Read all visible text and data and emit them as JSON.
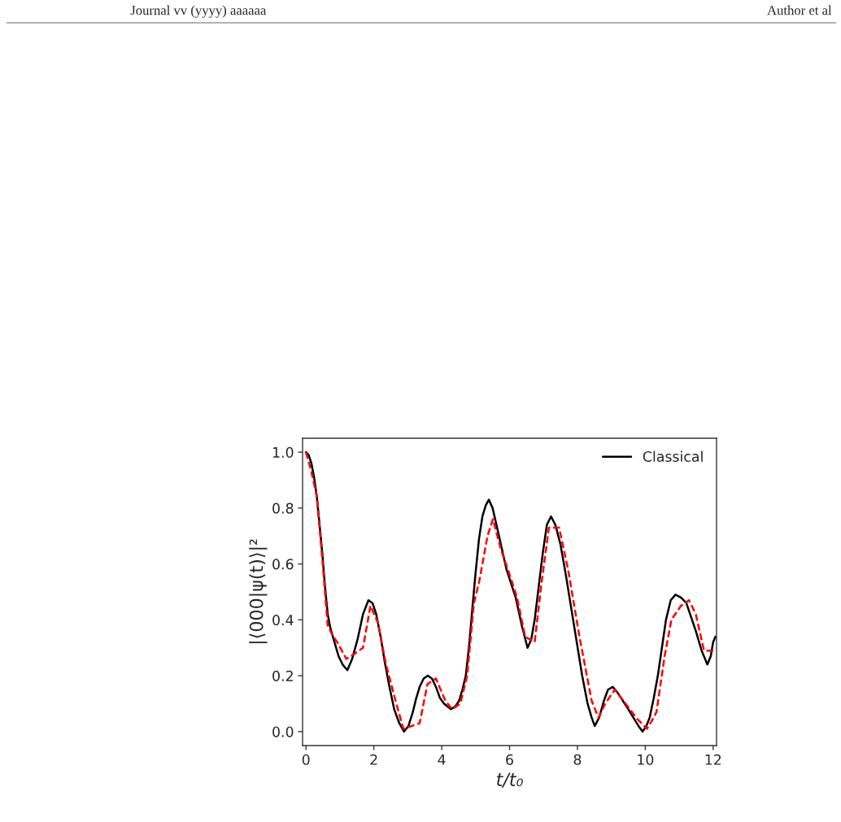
{
  "chart_data": {
    "type": "line",
    "xlabel": "t/t₀",
    "ylabel": "|⟨000|ψ(t)⟩|²",
    "annotations": [
      "Journal vv (yyyy) aaaaaa",
      "Author et al"
    ],
    "xlim": [
      -0.1,
      12.1
    ],
    "ylim": [
      -0.05,
      1.05
    ],
    "xticks": [
      0,
      2,
      4,
      6,
      8,
      10,
      12
    ],
    "yticks": [
      {
        "value": 0,
        "label": "0.0"
      },
      {
        "value": 0.2,
        "label": "0.2"
      },
      {
        "value": 0.4,
        "label": "0.4"
      },
      {
        "value": 0.6,
        "label": "0.6"
      },
      {
        "value": 0.8,
        "label": "0.8"
      },
      {
        "value": 1,
        "label": "1.0"
      }
    ],
    "legend": "top right",
    "series": [
      {
        "name": "Classical",
        "color": "#000000",
        "line_style": "solid",
        "x": [
          0,
          0.08,
          0.16,
          0.24,
          0.32,
          0.4,
          0.48,
          0.56,
          0.64,
          0.72,
          0.84,
          0.96,
          1.08,
          1.22,
          1.36,
          1.52,
          1.68,
          1.84,
          1.96,
          2.07,
          2.2,
          2.32,
          2.46,
          2.6,
          2.75,
          2.89,
          3.02,
          3.15,
          3.25,
          3.35,
          3.47,
          3.59,
          3.71,
          3.83,
          3.95,
          4.07,
          4.27,
          4.4,
          4.51,
          4.61,
          4.71,
          4.81,
          4.91,
          5.0,
          5.1,
          5.2,
          5.3,
          5.39,
          5.5,
          5.67,
          5.91,
          6.18,
          6.36,
          6.53,
          6.64,
          6.74,
          6.86,
          6.98,
          7.1,
          7.22,
          7.35,
          7.5,
          7.66,
          7.82,
          7.98,
          8.14,
          8.3,
          8.42,
          8.51,
          8.64,
          8.78,
          8.9,
          9.04,
          9.18,
          9.34,
          9.5,
          9.65,
          9.8,
          9.92,
          10.03,
          10.13,
          10.25,
          10.37,
          10.49,
          10.61,
          10.75,
          10.89,
          11.05,
          11.21,
          11.35,
          11.49,
          11.66,
          11.83,
          11.93,
          12.0,
          12.07
        ],
        "values": [
          1.0,
          0.99,
          0.96,
          0.91,
          0.84,
          0.74,
          0.64,
          0.52,
          0.42,
          0.37,
          0.32,
          0.27,
          0.24,
          0.22,
          0.26,
          0.33,
          0.42,
          0.47,
          0.46,
          0.42,
          0.34,
          0.25,
          0.16,
          0.08,
          0.03,
          0.0,
          0.02,
          0.07,
          0.12,
          0.16,
          0.19,
          0.2,
          0.19,
          0.16,
          0.12,
          0.1,
          0.08,
          0.09,
          0.11,
          0.15,
          0.2,
          0.31,
          0.45,
          0.57,
          0.69,
          0.77,
          0.81,
          0.83,
          0.8,
          0.71,
          0.58,
          0.48,
          0.38,
          0.3,
          0.33,
          0.4,
          0.52,
          0.64,
          0.74,
          0.77,
          0.74,
          0.67,
          0.56,
          0.44,
          0.32,
          0.2,
          0.1,
          0.05,
          0.02,
          0.05,
          0.11,
          0.15,
          0.16,
          0.14,
          0.11,
          0.08,
          0.05,
          0.02,
          0.0,
          0.02,
          0.05,
          0.12,
          0.2,
          0.3,
          0.4,
          0.47,
          0.49,
          0.48,
          0.46,
          0.41,
          0.36,
          0.29,
          0.24,
          0.27,
          0.32,
          0.34
        ]
      },
      {
        "color": "#ff0000",
        "line_style": "dashed",
        "x": [
          0,
          0.16,
          0.32,
          0.48,
          0.64,
          0.76,
          0.92,
          1.19,
          1.45,
          1.68,
          1.9,
          2.12,
          2.36,
          2.64,
          2.87,
          3.35,
          3.58,
          3.83,
          4.11,
          4.31,
          4.55,
          4.75,
          4.95,
          5.11,
          5.35,
          5.51,
          5.75,
          5.98,
          6.22,
          6.46,
          6.6,
          6.74,
          6.94,
          7.16,
          7.46,
          7.74,
          8.06,
          8.42,
          8.62,
          8.82,
          9.1,
          9.42,
          9.73,
          10.05,
          10.2,
          10.33,
          10.57,
          10.77,
          11.05,
          11.29,
          11.49,
          11.73,
          12.0,
          12.07
        ],
        "values": [
          1.0,
          0.93,
          0.84,
          0.62,
          0.38,
          0.35,
          0.32,
          0.26,
          0.28,
          0.3,
          0.45,
          0.39,
          0.24,
          0.11,
          0.01,
          0.03,
          0.17,
          0.19,
          0.11,
          0.08,
          0.1,
          0.2,
          0.46,
          0.54,
          0.7,
          0.76,
          0.65,
          0.57,
          0.48,
          0.34,
          0.33,
          0.32,
          0.53,
          0.73,
          0.73,
          0.57,
          0.34,
          0.11,
          0.05,
          0.1,
          0.15,
          0.1,
          0.05,
          0.01,
          0.04,
          0.07,
          0.27,
          0.4,
          0.45,
          0.47,
          0.42,
          0.29,
          0.29,
          0.29
        ]
      }
    ]
  }
}
